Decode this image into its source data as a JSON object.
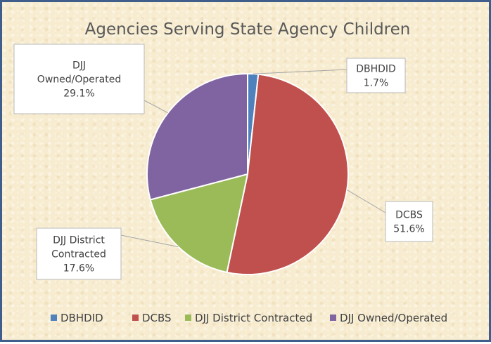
{
  "chart_data": {
    "type": "pie",
    "title": "Agencies Serving State Agency Children",
    "categories": [
      "DBHDID",
      "DCBS",
      "DJJ District Contracted",
      "DJJ Owned/Operated"
    ],
    "values": [
      1.7,
      51.6,
      17.6,
      29.1
    ],
    "value_labels": [
      "1.7%",
      "51.6%",
      "17.6%",
      "29.1%"
    ],
    "data_label_lines": [
      [
        "DBHDID",
        "1.7%"
      ],
      [
        "DCBS",
        "51.6%"
      ],
      [
        "DJJ District",
        "Contracted",
        "17.6%"
      ],
      [
        "DJJ",
        "Owned/Operated",
        "29.1%"
      ]
    ],
    "colors": [
      "#4f81bd",
      "#c0504d",
      "#9bbb59",
      "#8064a2"
    ],
    "legend_position": "bottom",
    "start_angle": "top, clockwise"
  }
}
